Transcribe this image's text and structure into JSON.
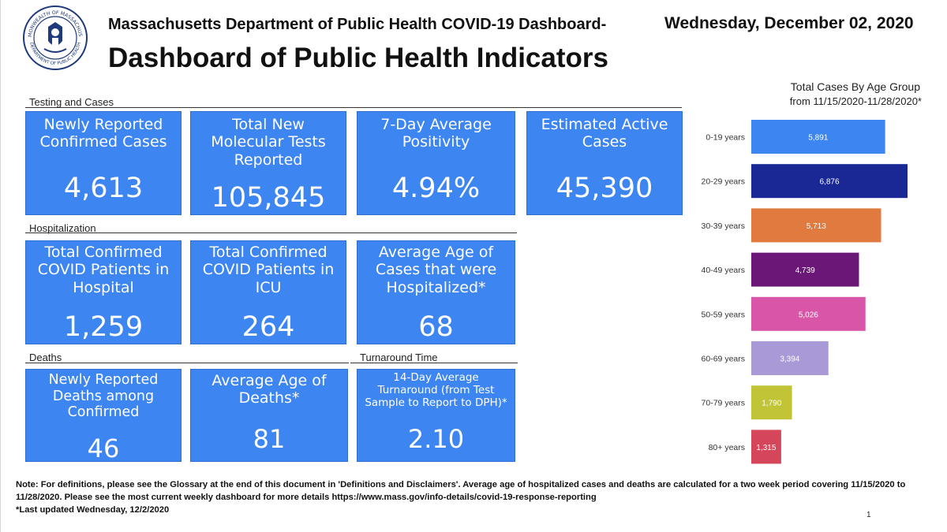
{
  "header": {
    "subtitle": "Massachusetts Department of Public Health COVID-19 Dashboard-",
    "title": "Dashboard of Public Health Indicators",
    "date": "Wednesday, December 02, 2020",
    "seal": {
      "top_text": "COMMONWEALTH OF MASSACHUSETTS",
      "bottom_text": "DEPARTMENT OF PUBLIC HEALTH"
    }
  },
  "sections": {
    "testing": "Testing and Cases",
    "hospitalization": "Hospitalization",
    "deaths": "Deaths",
    "turnaround": "Turnaround Time"
  },
  "tiles": {
    "new_cases": {
      "label": "Newly Reported\nConfirmed Cases",
      "value": "4,613"
    },
    "molecular_tests": {
      "label": "Total New\nMolecular Tests\nReported",
      "value": "105,845"
    },
    "positivity": {
      "label": "7-Day Average\nPositivity",
      "value": "4.94%"
    },
    "active_cases": {
      "label": "Estimated Active\nCases",
      "value": "45,390"
    },
    "hospital_patients": {
      "label": "Total Confirmed\nCOVID Patients in\nHospital",
      "value": "1,259"
    },
    "icu_patients": {
      "label": "Total Confirmed\nCOVID Patients in\nICU",
      "value": "264"
    },
    "hosp_age": {
      "label": "Average Age of\nCases that were\nHospitalized*",
      "value": "68"
    },
    "new_deaths": {
      "label": "Newly Reported\nDeaths among\nConfirmed",
      "value": "46"
    },
    "death_age": {
      "label": "Average Age of\nDeaths*",
      "value": "81"
    },
    "turnaround": {
      "label": "14-Day Average\nTurnaround (from Test\nSample to Report to DPH)*",
      "value": "2.10"
    }
  },
  "chart_data": {
    "type": "bar",
    "orientation": "horizontal",
    "title": "Total Cases By Age Group",
    "subtitle": "from 11/15/2020-11/28/2020*",
    "categories": [
      "0-19 years",
      "20-29 years",
      "30-39 years",
      "40-49 years",
      "50-59 years",
      "60-69 years",
      "70-79 years",
      "80+ years"
    ],
    "values": [
      5891,
      6876,
      5713,
      4739,
      5026,
      3394,
      1790,
      1315
    ],
    "value_labels": [
      "5,891",
      "6,876",
      "5,713",
      "4,739",
      "5,026",
      "3,394",
      "1,790",
      "1,315"
    ],
    "colors": [
      "#3d85f1",
      "#1a2896",
      "#e07a3f",
      "#6b1778",
      "#d955a8",
      "#a999d6",
      "#c1c437",
      "#d5465a"
    ],
    "xlim": [
      0,
      6876
    ]
  },
  "footer": {
    "note": "Note: For definitions, please see the Glossary at the end of this document in 'Definitions and Disclaimers'. Average age of hospitalized cases and deaths are calculated for a two week period covering 11/15/2020 to 11/28/2020. Please see the most current weekly dashboard for more details https://www.mass.gov/info-details/covid-19-response-reporting",
    "updated": "*Last updated Wednesday, 12/2/2020",
    "page_number": "1"
  }
}
